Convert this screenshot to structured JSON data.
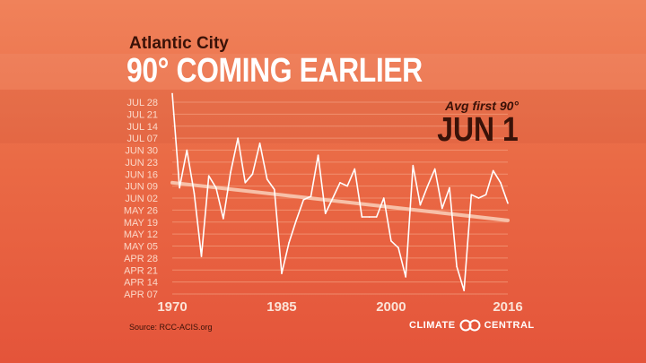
{
  "header": {
    "subtitle": "Atlantic City",
    "title": "90° COMING EARLIER"
  },
  "callout": {
    "label": "Avg first 90°",
    "value": "JUN 1"
  },
  "source": "Source: RCC-ACIS.org",
  "logo": {
    "left": "CLIMATE",
    "right": "CENTRAL"
  },
  "colors": {
    "line": "#ffffff",
    "trend": "#f7c0a8",
    "grid": "#f4a080",
    "text_dark": "#3a1208"
  },
  "chart_data": {
    "type": "line",
    "title": "90° COMING EARLIER",
    "subtitle": "Atlantic City",
    "y_tick_labels": [
      "APR 07",
      "APR 14",
      "APR 21",
      "APR 28",
      "MAY 05",
      "MAY 12",
      "MAY 19",
      "MAY 26",
      "JUN 02",
      "JUN 09",
      "JUN 16",
      "JUN 23",
      "JUN 30",
      "JUL 07",
      "JUL 14",
      "JUL 21",
      "JUL 28"
    ],
    "y_tick_doy": [
      97,
      104,
      111,
      118,
      125,
      132,
      139,
      146,
      153,
      160,
      167,
      174,
      181,
      188,
      195,
      202,
      209
    ],
    "ylim": [
      97,
      209
    ],
    "y_units": "day of year of first 90°F day (Apr 7 = 97, Jul 28 = 209)",
    "x_tick_labels": [
      "1970",
      "1985",
      "2000",
      "2016"
    ],
    "x_ticks": [
      1970,
      1985,
      2000,
      2016
    ],
    "xlim": [
      1970,
      2016
    ],
    "grid": true,
    "legend": "none",
    "series": [
      {
        "x": [
          1970,
          1971,
          1972,
          1973,
          1974,
          1975,
          1976,
          1977,
          1978,
          1979,
          1980,
          1981,
          1982,
          1983,
          1984,
          1985,
          1986,
          1987,
          1988,
          1989,
          1990,
          1991,
          1992,
          1993,
          1994,
          1995,
          1996,
          1997,
          1998,
          1999,
          2000,
          2001,
          2002,
          2003,
          2004,
          2005,
          2006,
          2007,
          2008,
          2009,
          2010,
          2011,
          2012,
          2013,
          2014,
          2015,
          2016
        ],
        "y": [
          214,
          159,
          181,
          156,
          119,
          166,
          159,
          141,
          168,
          188,
          162,
          167,
          185,
          164,
          158,
          109,
          127,
          140,
          152,
          154,
          178,
          144,
          153,
          162,
          160,
          170,
          142,
          142,
          142,
          153,
          128,
          124,
          107,
          172,
          149,
          160,
          170,
          147,
          159,
          113,
          99,
          155,
          153,
          155,
          169,
          162,
          150
        ]
      }
    ],
    "trend": {
      "x": [
        1970,
        2016
      ],
      "y": [
        162,
        140
      ]
    }
  }
}
